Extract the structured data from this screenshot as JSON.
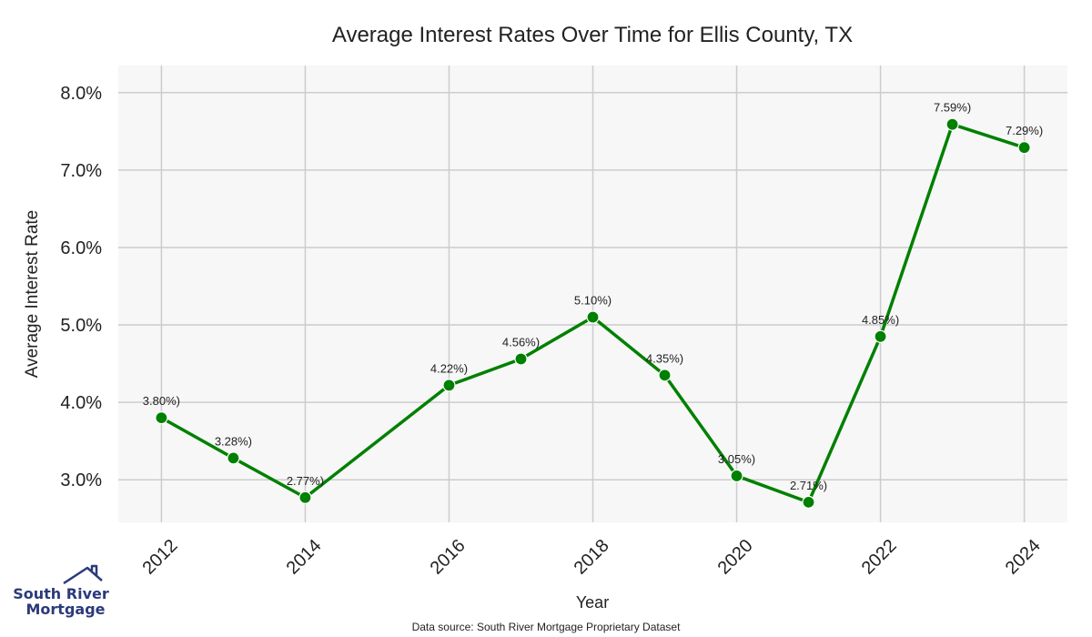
{
  "chart_data": {
    "type": "line",
    "title": "Average Interest Rates Over Time for Ellis County, TX",
    "xlabel": "Year",
    "ylabel": "Average Interest Rate",
    "x": [
      2012,
      2013,
      2014,
      2016,
      2017,
      2018,
      2019,
      2020,
      2021,
      2022,
      2023,
      2024
    ],
    "values": [
      3.8,
      3.28,
      2.77,
      4.22,
      4.56,
      5.1,
      4.35,
      3.05,
      2.71,
      4.85,
      7.59,
      7.29
    ],
    "data_labels": [
      "3.80%)",
      "3.28%)",
      "2.77%)",
      "4.22%)",
      "4.56%)",
      "5.10%)",
      "4.35%)",
      "3.05%)",
      "2.71%)",
      "4.85%)",
      "7.59%)",
      "7.29%)"
    ],
    "xticks": [
      "2012",
      "2014",
      "2016",
      "2018",
      "2020",
      "2022",
      "2024"
    ],
    "yticks": [
      "3.0%",
      "4.0%",
      "5.0%",
      "6.0%",
      "7.0%",
      "8.0%"
    ],
    "xlim": [
      2011.4,
      2024.6
    ],
    "ylim": [
      2.45,
      8.35
    ],
    "grid": true,
    "line_color": "#008000",
    "plot_background": "#f7f7f7",
    "grid_color": "#cccccc"
  },
  "footer": {
    "source": "Data source: South River Mortgage Proprietary Dataset"
  },
  "logo": {
    "line1": "South River",
    "line2": "Mortgage",
    "color": "#2b3a7a",
    "icon": "house-roof-icon"
  }
}
